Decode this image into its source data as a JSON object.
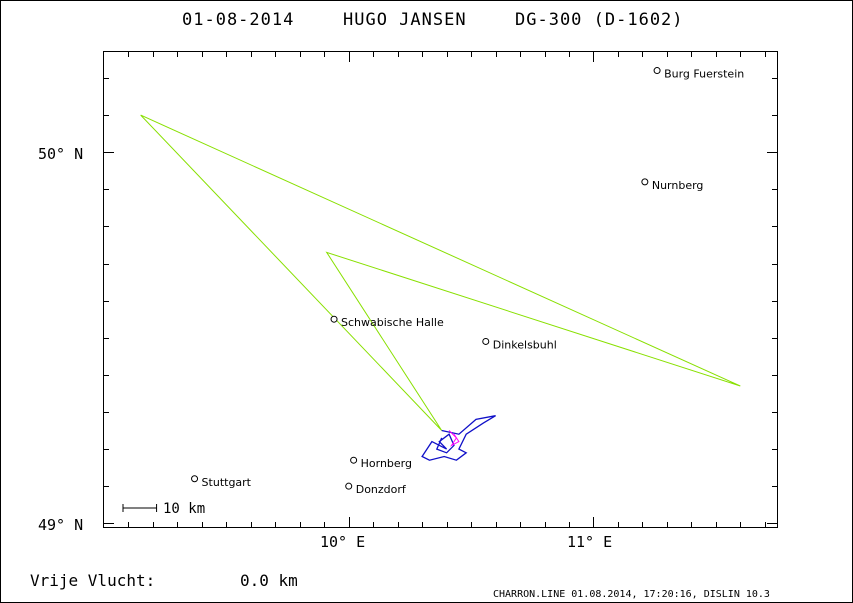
{
  "title": {
    "date": "01-08-2014",
    "pilot": "HUGO JANSEN",
    "glider": "DG-300 (D-1602)"
  },
  "axes": {
    "lat_labels": [
      "50° N",
      "49° N"
    ],
    "lon_labels": [
      "10° E",
      "11° E"
    ]
  },
  "scale_bar": {
    "label": "10 km"
  },
  "footer": {
    "distance_label": "Vrije Vlucht:",
    "distance_value": "0.0 km",
    "credit": "CHARRON.LINE 01.08.2014, 17:20:16, DISLIN 10.3"
  },
  "colors": {
    "task_line": "#88e000",
    "track": "#1010c8",
    "track_secondary": "#ff00ff",
    "frame": "#000000"
  },
  "chart_data": {
    "type": "map",
    "lon_range": [
      9.0,
      11.75
    ],
    "lat_range": [
      48.99,
      50.27
    ],
    "towns": [
      {
        "name": "Burg Fuerstein",
        "lon": 11.26,
        "lat": 50.22
      },
      {
        "name": "Nurnberg",
        "lon": 11.21,
        "lat": 49.92
      },
      {
        "name": "Schwabische Halle",
        "lon": 9.94,
        "lat": 49.55
      },
      {
        "name": "Dinkelsbuhl",
        "lon": 10.56,
        "lat": 49.49
      },
      {
        "name": "Hornberg",
        "lon": 10.02,
        "lat": 49.17
      },
      {
        "name": "Stuttgart",
        "lon": 9.37,
        "lat": 49.12
      },
      {
        "name": "Donzdorf",
        "lon": 10.0,
        "lat": 49.1
      }
    ],
    "task_route": [
      {
        "lon": 10.38,
        "lat": 49.25
      },
      {
        "lon": 9.15,
        "lat": 50.1
      },
      {
        "lon": 11.6,
        "lat": 49.37
      },
      {
        "lon": 9.91,
        "lat": 49.73
      },
      {
        "lon": 10.38,
        "lat": 49.25
      }
    ],
    "track": [
      {
        "lon": 10.38,
        "lat": 49.25
      },
      {
        "lon": 10.45,
        "lat": 49.24
      },
      {
        "lon": 10.52,
        "lat": 49.28
      },
      {
        "lon": 10.6,
        "lat": 49.29
      },
      {
        "lon": 10.55,
        "lat": 49.27
      },
      {
        "lon": 10.48,
        "lat": 49.24
      },
      {
        "lon": 10.45,
        "lat": 49.2
      },
      {
        "lon": 10.48,
        "lat": 49.19
      },
      {
        "lon": 10.44,
        "lat": 49.17
      },
      {
        "lon": 10.39,
        "lat": 49.18
      },
      {
        "lon": 10.33,
        "lat": 49.17
      },
      {
        "lon": 10.3,
        "lat": 49.18
      },
      {
        "lon": 10.34,
        "lat": 49.22
      },
      {
        "lon": 10.4,
        "lat": 49.2
      },
      {
        "lon": 10.37,
        "lat": 49.22
      },
      {
        "lon": 10.41,
        "lat": 49.24
      },
      {
        "lon": 10.43,
        "lat": 49.21
      },
      {
        "lon": 10.4,
        "lat": 49.19
      },
      {
        "lon": 10.36,
        "lat": 49.2
      },
      {
        "lon": 10.38,
        "lat": 49.23
      }
    ],
    "track_secondary": [
      {
        "lon": 10.41,
        "lat": 49.25
      },
      {
        "lon": 10.44,
        "lat": 49.23
      },
      {
        "lon": 10.42,
        "lat": 49.21
      },
      {
        "lon": 10.45,
        "lat": 49.22
      },
      {
        "lon": 10.43,
        "lat": 49.24
      }
    ],
    "scale_bar_km": 10
  }
}
